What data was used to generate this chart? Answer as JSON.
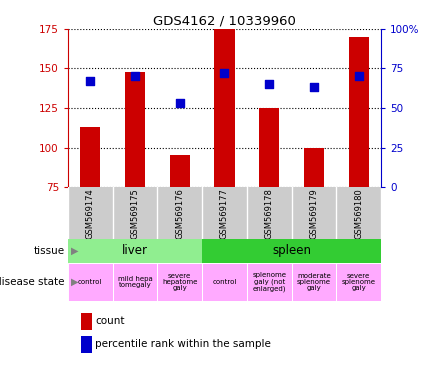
{
  "title": "GDS4162 / 10339960",
  "samples": [
    "GSM569174",
    "GSM569175",
    "GSM569176",
    "GSM569177",
    "GSM569178",
    "GSM569179",
    "GSM569180"
  ],
  "counts": [
    113,
    148,
    95,
    175,
    125,
    100,
    170
  ],
  "percentile_ranks": [
    67,
    70,
    53,
    72,
    65,
    63,
    70
  ],
  "ylim_left": [
    75,
    175
  ],
  "ylim_right": [
    0,
    100
  ],
  "left_ticks": [
    75,
    100,
    125,
    150,
    175
  ],
  "right_ticks": [
    0,
    25,
    50,
    75,
    100
  ],
  "bar_color": "#cc0000",
  "dot_color": "#0000cc",
  "tissue_liver_color": "#90ee90",
  "tissue_spleen_color": "#33cc33",
  "disease_state_color": "#ffaaff",
  "xtick_bg_color": "#cccccc",
  "left_axis_color": "#cc0000",
  "right_axis_color": "#0000cc",
  "bar_width": 0.45,
  "dot_size": 40,
  "tissue_row": [
    {
      "label": "liver",
      "start": 0,
      "end": 3
    },
    {
      "label": "spleen",
      "start": 3,
      "end": 7
    }
  ],
  "disease_state_row": [
    {
      "label": "control",
      "start": 0,
      "end": 1
    },
    {
      "label": "mild hepa\ntomegaly",
      "start": 1,
      "end": 2
    },
    {
      "label": "severe\nhepatome\ngaly",
      "start": 2,
      "end": 3
    },
    {
      "label": "control",
      "start": 3,
      "end": 4
    },
    {
      "label": "splenome\ngaly (not\nenlarged)",
      "start": 4,
      "end": 5
    },
    {
      "label": "moderate\nsplenome\ngaly",
      "start": 5,
      "end": 6
    },
    {
      "label": "severe\nsplenome\ngaly",
      "start": 6,
      "end": 7
    }
  ]
}
